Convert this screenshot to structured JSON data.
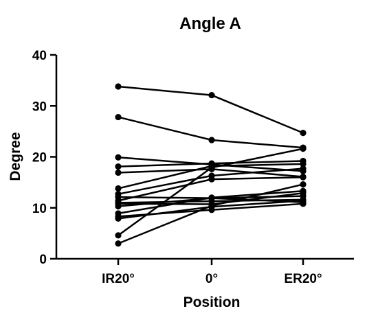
{
  "chart_data": {
    "type": "line",
    "title": "Angle A",
    "xlabel": "Position",
    "ylabel": "Degree",
    "categories": [
      "IR20°",
      "0°",
      "ER20°"
    ],
    "ylim": [
      0,
      40
    ],
    "yticks": [
      0,
      10,
      20,
      30,
      40
    ],
    "grid": false,
    "legend": "none",
    "series": [
      {
        "values": [
          33.8,
          32.1,
          24.7
        ]
      },
      {
        "values": [
          27.8,
          23.3,
          21.8
        ]
      },
      {
        "values": [
          19.9,
          18.5,
          17.2
        ]
      },
      {
        "values": [
          18.1,
          18.7,
          19.2
        ]
      },
      {
        "values": [
          16.9,
          17.6,
          16.1
        ]
      },
      {
        "values": [
          13.8,
          18.2,
          18.6
        ]
      },
      {
        "values": [
          12.7,
          16.3,
          17.7
        ]
      },
      {
        "values": [
          12.1,
          11.9,
          12.3
        ]
      },
      {
        "values": [
          11.4,
          15.6,
          16.0
        ]
      },
      {
        "values": [
          11.0,
          11.3,
          11.6
        ]
      },
      {
        "values": [
          10.8,
          10.7,
          12.9
        ]
      },
      {
        "values": [
          10.3,
          11.9,
          11.1
        ]
      },
      {
        "values": [
          8.9,
          12.0,
          13.3
        ]
      },
      {
        "values": [
          8.3,
          9.6,
          10.8
        ]
      },
      {
        "values": [
          7.9,
          10.2,
          11.4
        ]
      },
      {
        "values": [
          4.6,
          17.9,
          21.6
        ]
      },
      {
        "values": [
          3.0,
          10.4,
          14.6
        ]
      }
    ]
  }
}
